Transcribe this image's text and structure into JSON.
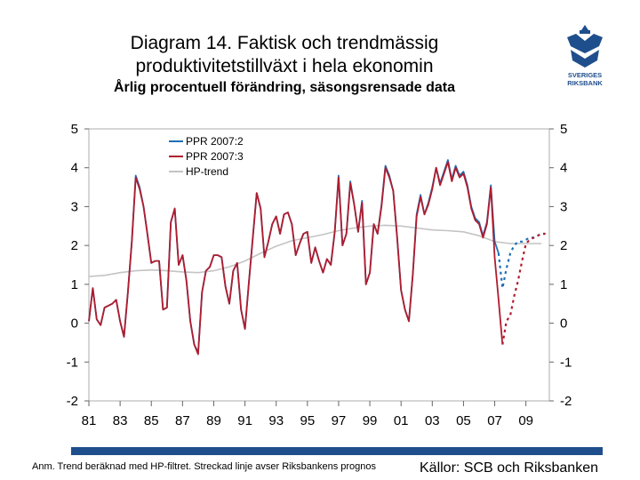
{
  "header": {
    "title_line1": "Diagram 14. Faktisk och trendmässig",
    "title_line2": "produktivitetstillväxt i hela ekonomin",
    "subtitle": "Årlig procentuell förändring, säsongsrensade data"
  },
  "logo": {
    "line1": "SVERIGES",
    "line2": "RIKSBANK",
    "color": "#1f4e8c"
  },
  "footer": {
    "note": "Anm. Trend beräknad med HP-filtret. Streckad linje avser Riksbankens prognos",
    "source": "Källor: SCB och Riksbanken",
    "bar_color": "#1f4e8c"
  },
  "chart_data": {
    "type": "line",
    "title": "Diagram 14. Faktisk och trendmässig produktivitetstillväxt i hela ekonomin",
    "subtitle": "Årlig procentuell förändring, säsongsrensade data",
    "xlim": [
      1981,
      2010.5
    ],
    "ylim": [
      -2,
      5
    ],
    "yticks": [
      -2,
      -1,
      0,
      1,
      2,
      3,
      4,
      5
    ],
    "xticks": [
      {
        "value": 1981,
        "label": "81"
      },
      {
        "value": 1983,
        "label": "83"
      },
      {
        "value": 1985,
        "label": "85"
      },
      {
        "value": 1987,
        "label": "87"
      },
      {
        "value": 1989,
        "label": "89"
      },
      {
        "value": 1991,
        "label": "91"
      },
      {
        "value": 1993,
        "label": "93"
      },
      {
        "value": 1995,
        "label": "95"
      },
      {
        "value": 1997,
        "label": "97"
      },
      {
        "value": 1999,
        "label": "99"
      },
      {
        "value": 2001,
        "label": "01"
      },
      {
        "value": 2003,
        "label": "03"
      },
      {
        "value": 2005,
        "label": "05"
      },
      {
        "value": 2007,
        "label": "07"
      },
      {
        "value": 2009,
        "label": "09"
      }
    ],
    "legend_position": "top-left",
    "series": [
      {
        "name": "PPR 2007:2",
        "color": "#1f6fb5",
        "x": [
          1981.0,
          1981.25,
          1981.5,
          1981.75,
          1982.0,
          1982.25,
          1982.5,
          1982.75,
          1983.0,
          1983.25,
          1983.5,
          1983.75,
          1984.0,
          1984.25,
          1984.5,
          1984.75,
          1985.0,
          1985.25,
          1985.5,
          1985.75,
          1986.0,
          1986.25,
          1986.5,
          1986.75,
          1987.0,
          1987.25,
          1987.5,
          1987.75,
          1988.0,
          1988.25,
          1988.5,
          1988.75,
          1989.0,
          1989.25,
          1989.5,
          1989.75,
          1990.0,
          1990.25,
          1990.5,
          1990.75,
          1991.0,
          1991.25,
          1991.5,
          1991.75,
          1992.0,
          1992.25,
          1992.5,
          1992.75,
          1993.0,
          1993.25,
          1993.5,
          1993.75,
          1994.0,
          1994.25,
          1994.5,
          1994.75,
          1995.0,
          1995.25,
          1995.5,
          1995.75,
          1996.0,
          1996.25,
          1996.5,
          1996.75,
          1997.0,
          1997.25,
          1997.5,
          1997.75,
          1998.0,
          1998.25,
          1998.5,
          1998.75,
          1999.0,
          1999.25,
          1999.5,
          1999.75,
          2000.0,
          2000.25,
          2000.5,
          2000.75,
          2001.0,
          2001.25,
          2001.5,
          2001.75,
          2002.0,
          2002.25,
          2002.5,
          2002.75,
          2003.0,
          2003.25,
          2003.5,
          2003.75,
          2004.0,
          2004.25,
          2004.5,
          2004.75,
          2005.0,
          2005.25,
          2005.5,
          2005.75,
          2006.0,
          2006.25,
          2006.5,
          2006.75,
          2007.0,
          2007.25
        ],
        "y": [
          0.05,
          0.9,
          0.1,
          -0.05,
          0.4,
          0.45,
          0.5,
          0.6,
          0.05,
          -0.35,
          0.8,
          2.1,
          3.8,
          3.5,
          3.0,
          2.3,
          1.55,
          1.6,
          1.6,
          0.35,
          0.4,
          2.6,
          2.95,
          1.5,
          1.75,
          1.1,
          0.05,
          -0.55,
          -0.75,
          0.8,
          1.35,
          1.45,
          1.75,
          1.75,
          1.7,
          0.95,
          0.5,
          1.35,
          1.55,
          0.35,
          -0.15,
          1.05,
          2.2,
          3.35,
          2.95,
          1.7,
          2.1,
          2.55,
          2.75,
          2.3,
          2.8,
          2.85,
          2.55,
          1.75,
          2.05,
          2.3,
          2.35,
          1.55,
          1.95,
          1.6,
          1.3,
          1.65,
          1.5,
          2.35,
          3.8,
          2.0,
          2.3,
          3.65,
          3.05,
          2.35,
          3.15,
          1.0,
          1.3,
          2.55,
          2.3,
          3.05,
          4.05,
          3.8,
          3.4,
          2.2,
          0.85,
          0.35,
          0.05,
          1.25,
          2.8,
          3.3,
          2.8,
          3.1,
          3.5,
          4.0,
          3.6,
          3.9,
          4.2,
          3.7,
          4.05,
          3.8,
          3.9,
          3.55,
          3.0,
          2.7,
          2.6,
          2.25,
          2.6,
          3.55,
          2.1,
          1.8
        ]
      },
      {
        "name": "PPR 2007:3",
        "color": "#b01c2e",
        "x": [
          1981.0,
          1981.25,
          1981.5,
          1981.75,
          1982.0,
          1982.25,
          1982.5,
          1982.75,
          1983.0,
          1983.25,
          1983.5,
          1983.75,
          1984.0,
          1984.25,
          1984.5,
          1984.75,
          1985.0,
          1985.25,
          1985.5,
          1985.75,
          1986.0,
          1986.25,
          1986.5,
          1986.75,
          1987.0,
          1987.25,
          1987.5,
          1987.75,
          1988.0,
          1988.25,
          1988.5,
          1988.75,
          1989.0,
          1989.25,
          1989.5,
          1989.75,
          1990.0,
          1990.25,
          1990.5,
          1990.75,
          1991.0,
          1991.25,
          1991.5,
          1991.75,
          1992.0,
          1992.25,
          1992.5,
          1992.75,
          1993.0,
          1993.25,
          1993.5,
          1993.75,
          1994.0,
          1994.25,
          1994.5,
          1994.75,
          1995.0,
          1995.25,
          1995.5,
          1995.75,
          1996.0,
          1996.25,
          1996.5,
          1996.75,
          1997.0,
          1997.25,
          1997.5,
          1997.75,
          1998.0,
          1998.25,
          1998.5,
          1998.75,
          1999.0,
          1999.25,
          1999.5,
          1999.75,
          2000.0,
          2000.25,
          2000.5,
          2000.75,
          2001.0,
          2001.25,
          2001.5,
          2001.75,
          2002.0,
          2002.25,
          2002.5,
          2002.75,
          2003.0,
          2003.25,
          2003.5,
          2003.75,
          2004.0,
          2004.25,
          2004.5,
          2004.75,
          2005.0,
          2005.25,
          2005.5,
          2005.75,
          2006.0,
          2006.25,
          2006.5,
          2006.75,
          2007.0,
          2007.25,
          2007.5
        ],
        "y": [
          0.05,
          0.9,
          0.1,
          -0.05,
          0.4,
          0.45,
          0.5,
          0.6,
          0.05,
          -0.35,
          0.8,
          2.1,
          3.75,
          3.45,
          3.0,
          2.3,
          1.55,
          1.6,
          1.6,
          0.35,
          0.4,
          2.6,
          2.95,
          1.5,
          1.75,
          1.1,
          0.05,
          -0.55,
          -0.8,
          0.8,
          1.35,
          1.45,
          1.75,
          1.75,
          1.7,
          0.95,
          0.5,
          1.35,
          1.55,
          0.35,
          -0.15,
          1.05,
          2.2,
          3.35,
          2.95,
          1.7,
          2.1,
          2.55,
          2.75,
          2.3,
          2.8,
          2.85,
          2.55,
          1.75,
          2.05,
          2.3,
          2.35,
          1.55,
          1.95,
          1.6,
          1.3,
          1.65,
          1.5,
          2.35,
          3.75,
          2.0,
          2.3,
          3.6,
          3.05,
          2.35,
          3.1,
          1.0,
          1.3,
          2.55,
          2.3,
          3.0,
          4.0,
          3.75,
          3.4,
          2.2,
          0.85,
          0.35,
          0.05,
          1.25,
          2.75,
          3.25,
          2.8,
          3.05,
          3.45,
          4.0,
          3.55,
          3.85,
          4.15,
          3.65,
          4.0,
          3.75,
          3.85,
          3.5,
          2.95,
          2.65,
          2.55,
          2.2,
          2.55,
          3.5,
          1.7,
          0.6,
          -0.55
        ]
      },
      {
        "name": "HP-trend",
        "color": "#c4c4c4",
        "x": [
          1981.0,
          1982.0,
          1983.0,
          1984.0,
          1985.0,
          1986.0,
          1987.0,
          1988.0,
          1989.0,
          1990.0,
          1991.0,
          1992.0,
          1993.0,
          1994.0,
          1995.0,
          1996.0,
          1997.0,
          1998.0,
          1999.0,
          2000.0,
          2001.0,
          2002.0,
          2003.0,
          2004.0,
          2005.0,
          2006.0,
          2007.0,
          2008.0,
          2009.0,
          2010.0
        ],
        "y": [
          1.2,
          1.23,
          1.3,
          1.35,
          1.37,
          1.35,
          1.32,
          1.3,
          1.35,
          1.45,
          1.6,
          1.8,
          1.98,
          2.12,
          2.2,
          2.28,
          2.38,
          2.45,
          2.5,
          2.52,
          2.5,
          2.45,
          2.4,
          2.38,
          2.35,
          2.25,
          2.1,
          2.05,
          2.05,
          2.05
        ]
      }
    ],
    "forecast_series": [
      {
        "name": "PPR 2007:2 (prognos)",
        "color": "#1f6fb5",
        "dashed": true,
        "x": [
          2007.25,
          2007.5,
          2007.75,
          2008.0,
          2008.25,
          2008.5,
          2008.75,
          2009.0,
          2009.25,
          2009.5,
          2009.75,
          2010.0,
          2010.25
        ],
        "y": [
          1.8,
          0.9,
          1.4,
          1.8,
          2.0,
          2.1,
          2.1,
          2.15,
          2.2,
          2.2,
          2.25,
          2.3,
          2.3
        ]
      },
      {
        "name": "PPR 2007:3 (prognos)",
        "color": "#b01c2e",
        "dashed": true,
        "x": [
          2007.5,
          2007.75,
          2008.0,
          2008.25,
          2008.5,
          2008.75,
          2009.0,
          2009.25,
          2009.5,
          2009.75,
          2010.0,
          2010.25
        ],
        "y": [
          -0.55,
          0.05,
          0.2,
          0.7,
          1.1,
          1.6,
          2.05,
          2.15,
          2.2,
          2.25,
          2.3,
          2.3
        ]
      }
    ]
  }
}
